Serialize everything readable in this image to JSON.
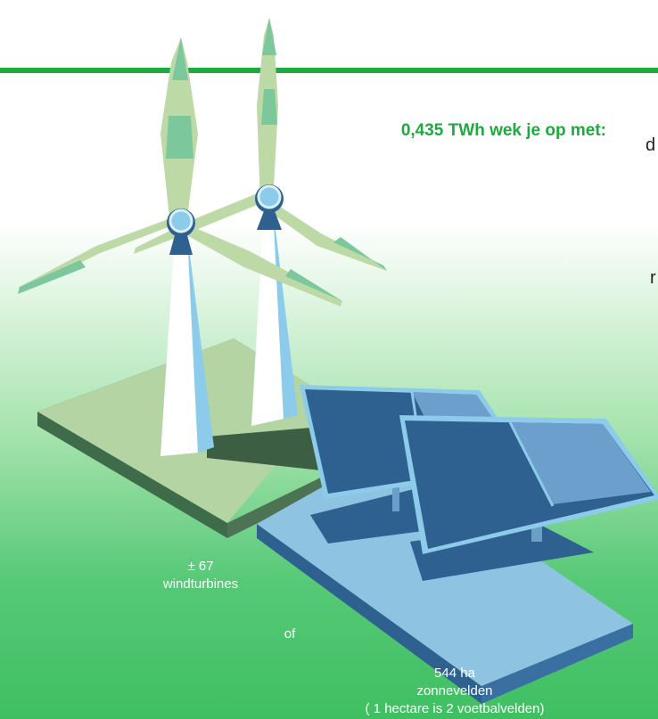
{
  "headline": "0,435 TWh wek je op met:",
  "cutoff_text": {
    "d": "d",
    "r": "r"
  },
  "wind": {
    "count": "± 67",
    "label": "windturbines"
  },
  "or_label": "of",
  "solar": {
    "area": "544 ha",
    "label": "zonnevelden",
    "note": "( 1 hectare is  2 voetbalvelden)"
  },
  "colors": {
    "accent_green": "#1daa3e",
    "turbine_blade": "#bcd9a6",
    "turbine_blade_tip": "#7cc89c",
    "tower": "#bfe0ef",
    "hub": "#8ccbea",
    "panel": "#2e6190",
    "panel_frame": "#8ccbea",
    "ground_wind": "#b5d4a4",
    "ground_solar": "#8fc3e2"
  }
}
